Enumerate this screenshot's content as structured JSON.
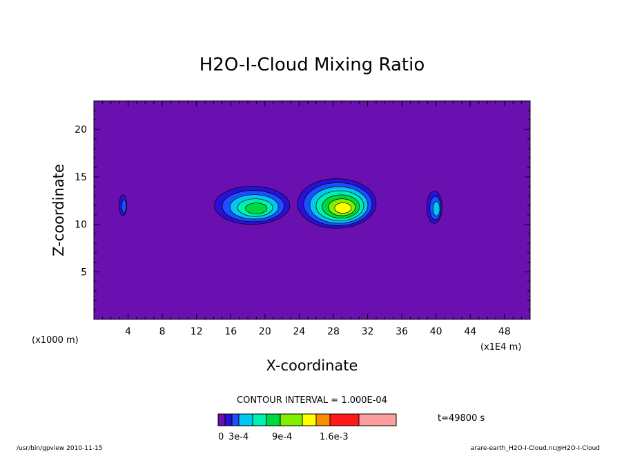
{
  "chart_data": {
    "type": "contour",
    "title": "H2O-I-Cloud Mixing Ratio",
    "xlabel": "X-coordinate",
    "ylabel": "Z-coordinate",
    "x_unit_left": "(x1000 m)",
    "x_unit_right": "(x1E4 m)",
    "xlim": [
      0,
      51
    ],
    "ylim": [
      0,
      23
    ],
    "x_ticks": [
      4,
      8,
      12,
      16,
      20,
      24,
      28,
      32,
      36,
      40,
      44,
      48
    ],
    "y_ticks": [
      5,
      10,
      15,
      20
    ],
    "contour_interval_text": "CONTOUR INTERVAL = 1.000E-04",
    "time_text": "t=49800 s",
    "colorbar": {
      "colors": [
        "#6a0fb0",
        "#2a10d6",
        "#1b4fff",
        "#00c8f0",
        "#00f0b0",
        "#00d840",
        "#80f000",
        "#ffff00",
        "#ff8c00",
        "#ff1a1a",
        "#ff9e9e"
      ],
      "labels": [
        "0",
        "3e-4",
        "9e-4",
        "1.6e-3"
      ]
    },
    "background_color": "#6a0fb0",
    "features": [
      {
        "cx": 3.4,
        "cz": 12.0,
        "rx": 0.45,
        "rz": 1.1,
        "levels": 2
      },
      {
        "cx": 18.5,
        "cz": 12.0,
        "rx": 4.4,
        "rz": 2.0,
        "levels": 5
      },
      {
        "cx": 28.4,
        "cz": 12.2,
        "rx": 4.6,
        "rz": 2.6,
        "levels": 7
      },
      {
        "cx": 39.8,
        "cz": 11.8,
        "rx": 0.9,
        "rz": 1.7,
        "levels": 3
      }
    ]
  },
  "footer": {
    "left": "/usr/bin/gpview  2010-11-15",
    "right": "arare-earth_H2O-I-Cloud.nc@H2O-I-Cloud"
  }
}
